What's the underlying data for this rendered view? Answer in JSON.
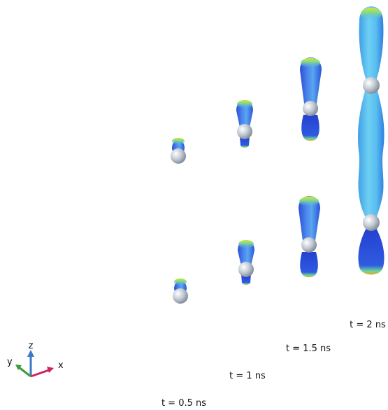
{
  "labels": [
    "t = 0.5 ns",
    "t = 1 ns",
    "t = 1.5 ns",
    "t = 2 ns"
  ],
  "axes": {
    "x": "x",
    "y": "y",
    "z": "z"
  }
}
